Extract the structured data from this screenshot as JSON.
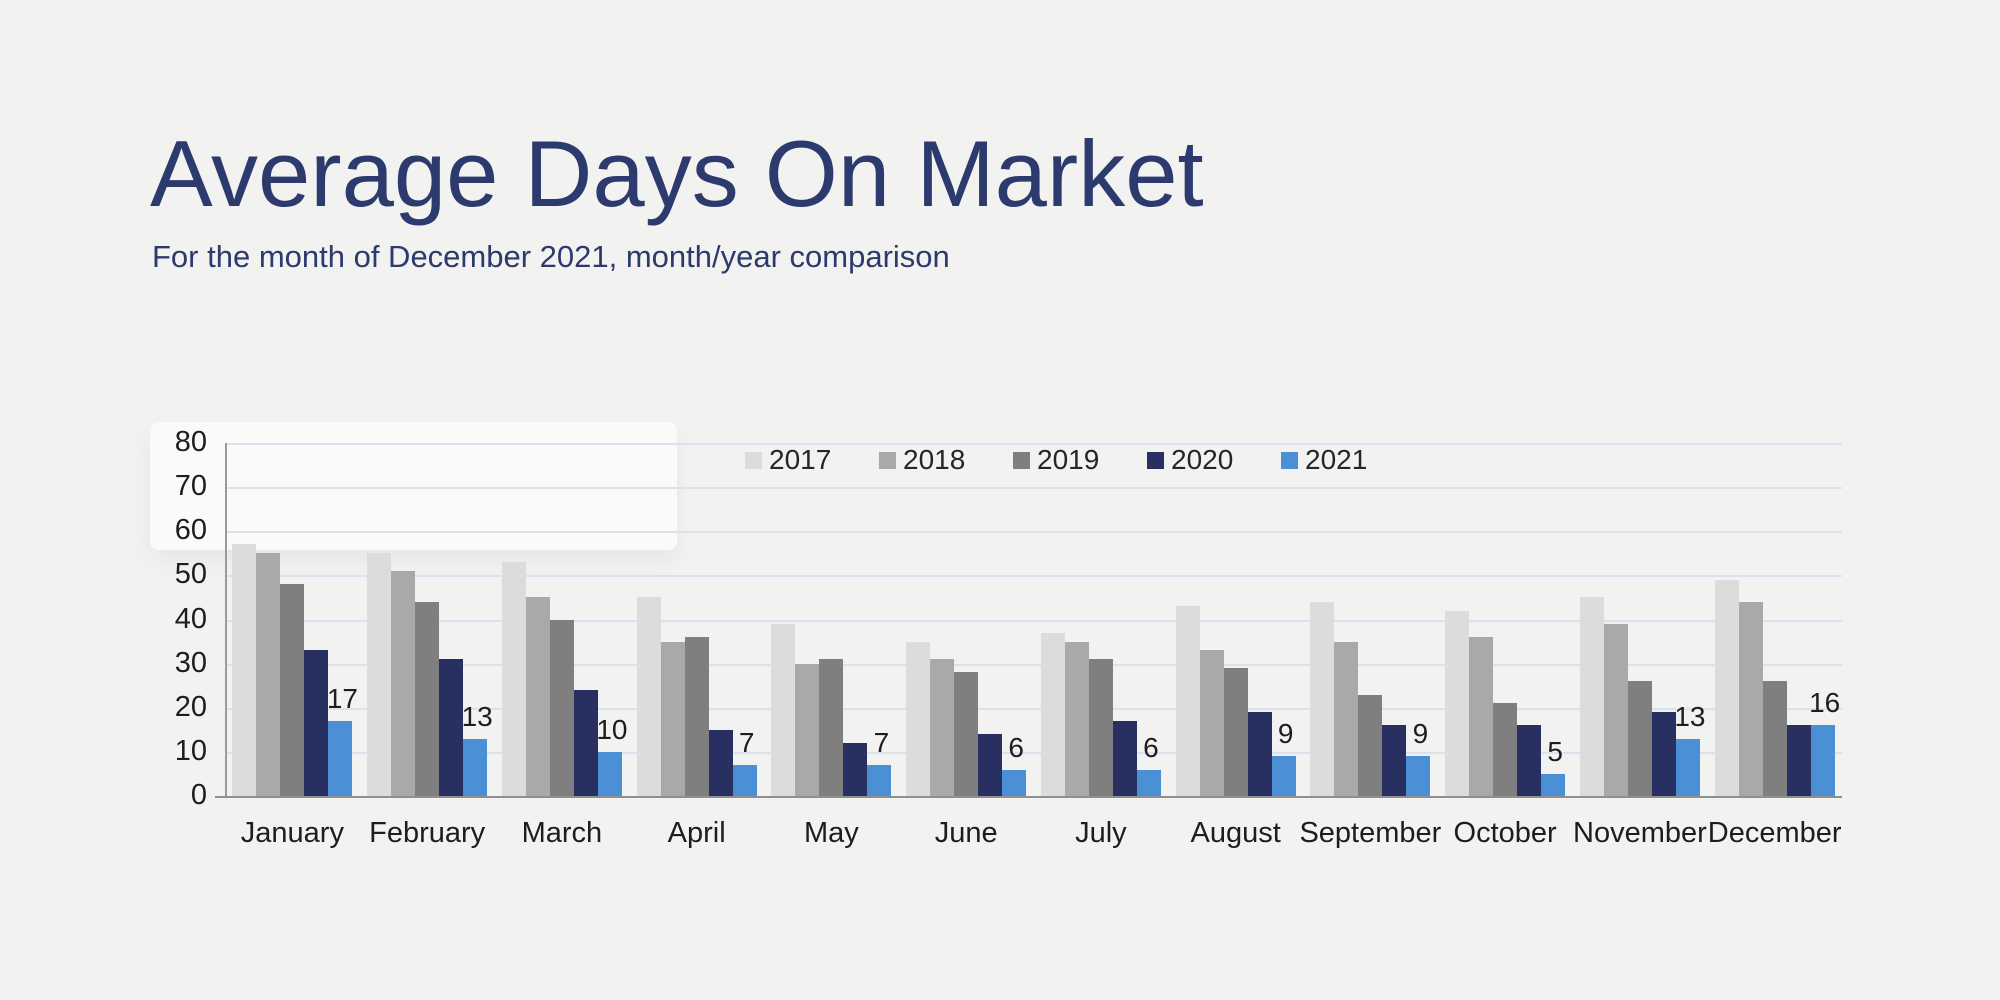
{
  "header": {
    "title": "Average Days On Market",
    "subtitle": "For the month of December 2021, month/year comparison"
  },
  "colors": {
    "background": "#f2f2f1",
    "title_text": "#2d3a6e",
    "gridline": "#dbe1ee",
    "axis_line": "#9b9b9b",
    "tick_label": "#1d1d1d"
  },
  "chart_data": {
    "type": "bar",
    "title": "Average Days On Market",
    "subtitle": "For the month of December 2021, month/year comparison",
    "categories": [
      "January",
      "February",
      "March",
      "April",
      "May",
      "June",
      "July",
      "August",
      "September",
      "October",
      "November",
      "December"
    ],
    "series": [
      {
        "name": "2017",
        "color": "#dcdcda",
        "values": [
          57,
          55,
          53,
          45,
          39,
          35,
          37,
          43,
          44,
          42,
          45,
          49
        ]
      },
      {
        "name": "2018",
        "color": "#a9a9a9",
        "values": [
          55,
          51,
          45,
          35,
          30,
          31,
          35,
          33,
          35,
          36,
          39,
          44
        ]
      },
      {
        "name": "2019",
        "color": "#7f7f7f",
        "values": [
          48,
          44,
          40,
          36,
          31,
          28,
          31,
          29,
          23,
          21,
          26,
          26
        ]
      },
      {
        "name": "2020",
        "color": "#273060",
        "values": [
          33,
          31,
          24,
          15,
          12,
          14,
          17,
          19,
          16,
          16,
          19,
          16
        ]
      },
      {
        "name": "2021",
        "color": "#4b90d4",
        "values": [
          17,
          13,
          10,
          7,
          7,
          6,
          6,
          9,
          9,
          5,
          13,
          16
        ],
        "show_value_labels": true
      }
    ],
    "value_labels": [
      17,
      13,
      10,
      7,
      7,
      6,
      6,
      9,
      9,
      5,
      13,
      16
    ],
    "ylim": [
      0,
      80
    ],
    "ytick_interval": 10,
    "grid": true,
    "legend_position": "top-center",
    "legend_labels": [
      "2017",
      "2018",
      "2019",
      "2020",
      "2021"
    ]
  }
}
